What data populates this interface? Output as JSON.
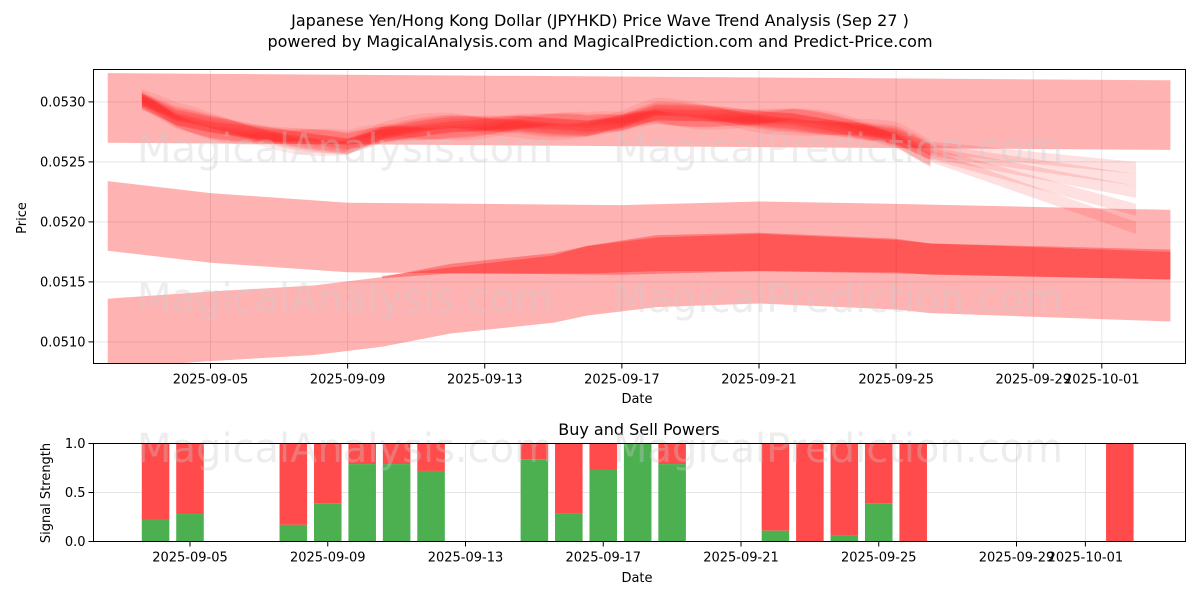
{
  "title_line1": "Japanese Yen/Hong Kong Dollar (JPYHKD) Price Wave Trend Analysis (Sep 27 )",
  "title_line2": "powered by MagicalAnalysis.com and MagicalPrediction.com and Predict-Price.com",
  "watermark_left": "MagicalAnalysis.com",
  "watermark_right": "MagicalPrediction.com",
  "colors": {
    "band": "#ff0000",
    "buy": "#4caf50",
    "sell": "#ff4b4b",
    "grid": "#e5e5e5",
    "watermark": "#cccccc"
  },
  "chart_data": [
    {
      "type": "area",
      "name": "price-wave",
      "xlabel": "Date",
      "ylabel": "Price",
      "ylim": [
        0.05082,
        0.05327
      ],
      "x_range_days": [
        "2025-09-02",
        "2025-10-04"
      ],
      "xticks": [
        "2025-09-05",
        "2025-09-09",
        "2025-09-13",
        "2025-09-17",
        "2025-09-21",
        "2025-09-25",
        "2025-09-29",
        "2025-10-01"
      ],
      "yticks": [
        0.051,
        0.0515,
        0.052,
        0.0525,
        0.053
      ],
      "wide_bands": [
        {
          "name": "upper-channel",
          "x": [
            "2025-09-02",
            "2025-10-03"
          ],
          "center": [
            0.05295,
            0.05289
          ],
          "half_width": 0.00029
        },
        {
          "name": "middle-channel",
          "x": [
            "2025-09-02",
            "2025-09-05",
            "2025-09-09",
            "2025-09-13",
            "2025-09-17",
            "2025-09-21",
            "2025-09-25",
            "2025-10-03"
          ],
          "center": [
            0.05205,
            0.05195,
            0.05187,
            0.05186,
            0.05185,
            0.05188,
            0.05186,
            0.05181
          ],
          "half_width": 0.00029
        },
        {
          "name": "lower-channel",
          "x": [
            "2025-09-02",
            "2025-09-05",
            "2025-09-08",
            "2025-09-10",
            "2025-09-12",
            "2025-09-15",
            "2025-09-16",
            "2025-09-18",
            "2025-09-21",
            "2025-09-25",
            "2025-09-26",
            "2025-10-03"
          ],
          "center": [
            0.05107,
            0.05113,
            0.05118,
            0.05125,
            0.05136,
            0.05145,
            0.05151,
            0.05158,
            0.05161,
            0.05156,
            0.05153,
            0.05146
          ],
          "half_width": 0.00029
        }
      ],
      "dark_band": {
        "x": [
          "2025-09-10",
          "2025-09-12",
          "2025-09-15",
          "2025-09-16",
          "2025-09-18",
          "2025-09-21",
          "2025-09-25",
          "2025-09-26",
          "2025-10-03"
        ],
        "lower": [
          0.05153,
          0.05157,
          0.05157,
          0.05157,
          0.05159,
          0.05159,
          0.05158,
          0.05156,
          0.05152
        ],
        "upper": [
          0.05155,
          0.05162,
          0.05172,
          0.0518,
          0.05189,
          0.05191,
          0.05186,
          0.05182,
          0.05177
        ]
      },
      "wave_center": {
        "x": [
          "2025-09-03",
          "2025-09-04",
          "2025-09-05",
          "2025-09-07",
          "2025-09-09",
          "2025-09-10",
          "2025-09-12",
          "2025-09-14",
          "2025-09-16",
          "2025-09-17",
          "2025-09-18",
          "2025-09-20",
          "2025-09-22",
          "2025-09-24",
          "2025-09-25",
          "2025-09-26"
        ],
        "y": [
          0.053,
          0.05286,
          0.0528,
          0.05272,
          0.05264,
          0.05272,
          0.0528,
          0.05283,
          0.05279,
          0.05282,
          0.0529,
          0.05289,
          0.05285,
          0.05275,
          0.0527,
          0.05257
        ]
      },
      "wave_tails": [
        {
          "x": [
            "2025-09-26",
            "2025-10-02"
          ],
          "y": [
            0.05255,
            0.05195
          ]
        },
        {
          "x": [
            "2025-09-26",
            "2025-10-02"
          ],
          "y": [
            0.05257,
            0.0521
          ]
        },
        {
          "x": [
            "2025-09-26",
            "2025-10-02"
          ],
          "y": [
            0.05258,
            0.05225
          ]
        },
        {
          "x": [
            "2025-09-26",
            "2025-10-02"
          ],
          "y": [
            0.0526,
            0.05235
          ]
        },
        {
          "x": [
            "2025-09-26",
            "2025-10-02"
          ],
          "y": [
            0.05262,
            0.05245
          ]
        }
      ]
    },
    {
      "type": "bar",
      "name": "buy-sell-powers",
      "title": "Buy and Sell Powers",
      "xlabel": "Date",
      "ylabel": "Signal Strength",
      "ylim": [
        0,
        1
      ],
      "yticks": [
        "0.0",
        "0.5",
        "1.0"
      ],
      "xticks": [
        "2025-09-05",
        "2025-09-09",
        "2025-09-13",
        "2025-09-17",
        "2025-09-21",
        "2025-09-25",
        "2025-09-29",
        "2025-10-01"
      ],
      "series": [
        {
          "name": "Buy",
          "color": "#4caf50"
        },
        {
          "name": "Sell",
          "color": "#ff4b4b"
        }
      ],
      "bars": [
        {
          "date": "2025-09-04",
          "buy": 0.22
        },
        {
          "date": "2025-09-05",
          "buy": 0.28
        },
        {
          "date": "2025-09-08",
          "buy": 0.17
        },
        {
          "date": "2025-09-09",
          "buy": 0.39
        },
        {
          "date": "2025-09-10",
          "buy": 0.79
        },
        {
          "date": "2025-09-11",
          "buy": 0.79
        },
        {
          "date": "2025-09-12",
          "buy": 0.72
        },
        {
          "date": "2025-09-15",
          "buy": 0.84
        },
        {
          "date": "2025-09-16",
          "buy": 0.29
        },
        {
          "date": "2025-09-17",
          "buy": 0.73
        },
        {
          "date": "2025-09-18",
          "buy": 1.0
        },
        {
          "date": "2025-09-19",
          "buy": 0.79
        },
        {
          "date": "2025-09-22",
          "buy": 0.11
        },
        {
          "date": "2025-09-23",
          "buy": 0.0
        },
        {
          "date": "2025-09-24",
          "buy": 0.06
        },
        {
          "date": "2025-09-25",
          "buy": 0.39
        },
        {
          "date": "2025-09-26",
          "buy": 0.0
        },
        {
          "date": "2025-10-02",
          "buy": 0.0
        }
      ]
    }
  ]
}
